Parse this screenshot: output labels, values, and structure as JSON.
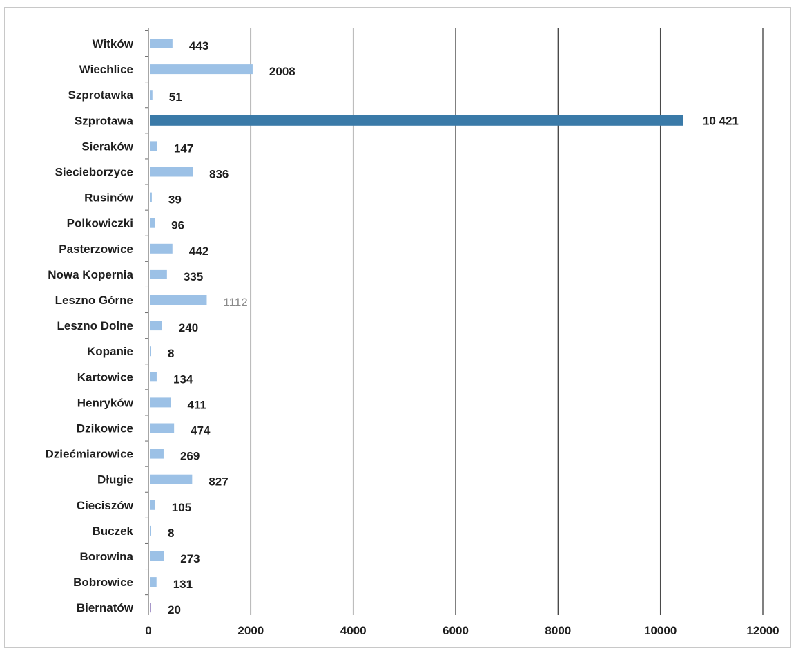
{
  "chart_data": {
    "type": "bar",
    "orientation": "horizontal",
    "title": "",
    "xlabel": "",
    "ylabel": "",
    "xlim": [
      0,
      12000
    ],
    "x_ticks": [
      "0",
      "2000",
      "4000",
      "6000",
      "8000",
      "10000",
      "12000"
    ],
    "grid": true,
    "legend": "none",
    "categories": [
      "Witków",
      "Wiechlice",
      "Szprotawka",
      "Szprotawa",
      "Sieraków",
      "Siecieborzyce",
      "Rusinów",
      "Polkowiczki",
      "Pasterzowice",
      "Nowa Kopernia",
      "Leszno Górne",
      "Leszno Dolne",
      "Kopanie",
      "Kartowice",
      "Henryków",
      "Dzikowice",
      "Dziećmiarowice",
      "Długie",
      "Cieciszów",
      "Buczek",
      "Borowina",
      "Bobrowice",
      "Biernatów"
    ],
    "values": [
      443,
      2008,
      51,
      10421,
      147,
      836,
      39,
      96,
      442,
      335,
      1112,
      240,
      8,
      134,
      411,
      474,
      269,
      827,
      105,
      8,
      273,
      131,
      20
    ],
    "value_labels": [
      "443",
      "2008",
      "51",
      "10 421",
      "147",
      "836",
      "39",
      "96",
      "442",
      "335",
      "1112",
      "240",
      "8",
      "134",
      "411",
      "474",
      "269",
      "827",
      "105",
      "8",
      "273",
      "131",
      "20"
    ],
    "bar_colors": {
      "highlight": "#3a7aa8",
      "default": "#9cc1e6",
      "first": "#a797c9"
    },
    "highlight_category": "Szprotawa",
    "muted_label_category": "Leszno Górne"
  }
}
